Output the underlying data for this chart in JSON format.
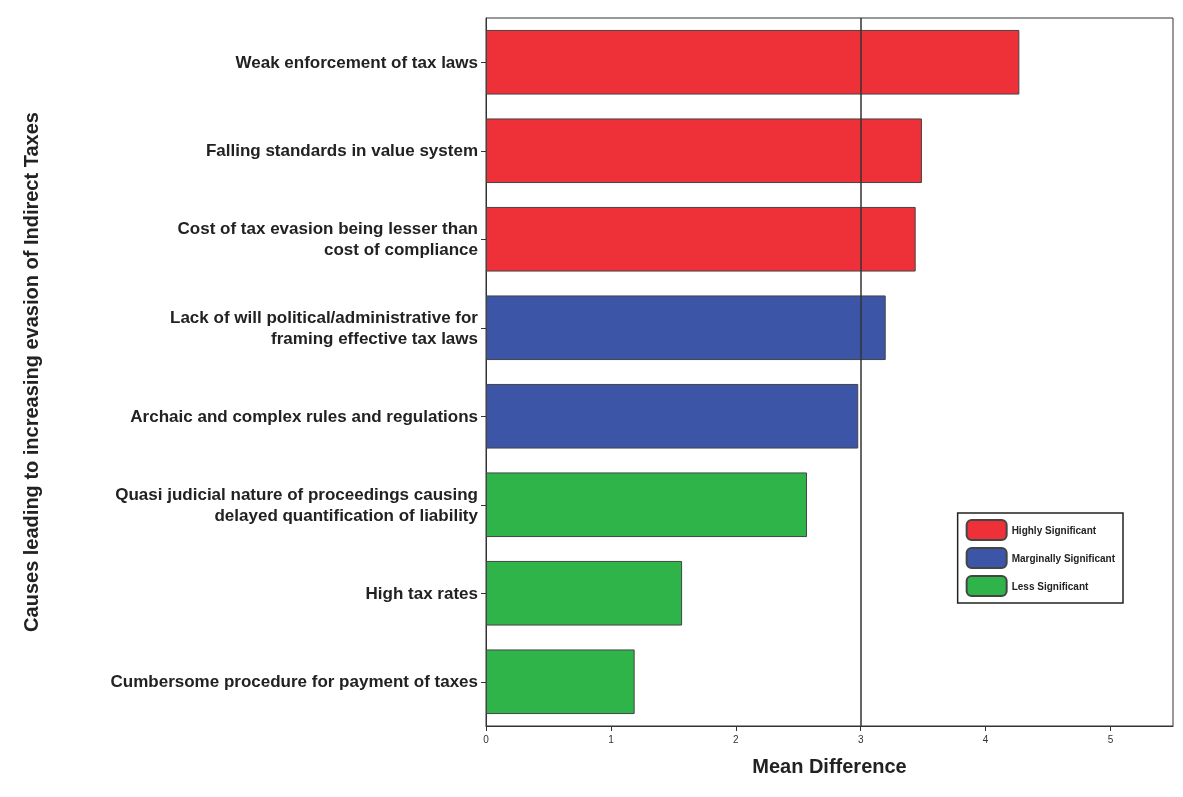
{
  "chart_data": {
    "type": "bar",
    "orientation": "horizontal",
    "xlabel": "Mean Difference",
    "ylabel": "Causes leading to increasing evasion of Indirect Taxes",
    "categories": [
      "Weak enforcement of tax laws",
      "Falling standards in value system",
      "Cost of tax evasion being lesser than\ncost of compliance",
      "Lack of will political/administrative for\nframing effective tax laws",
      "Archaic and complex rules and regulations",
      "Quasi judicial nature of proceedings causing\ndelayed quantification of liability",
      "High tax rates",
      "Cumbersome procedure for payment of taxes"
    ],
    "series": [
      {
        "name": "Highly Significant",
        "color": "#ee3138",
        "values": [
          4.27,
          3.49,
          3.44,
          null,
          null,
          null,
          null,
          null
        ]
      },
      {
        "name": "Marginally Significant",
        "color": "#3c55a6",
        "values": [
          null,
          null,
          null,
          3.2,
          2.98,
          null,
          null,
          null
        ]
      },
      {
        "name": "Less Significant",
        "color": "#2fb44a",
        "values": [
          null,
          null,
          null,
          null,
          null,
          2.57,
          1.57,
          1.19
        ]
      }
    ],
    "xlim": [
      0,
      5.5
    ],
    "xticks": [
      0,
      1,
      2,
      3,
      4,
      5
    ],
    "grid": false,
    "legend": "right",
    "ref_lines": [
      {
        "axis": "x",
        "value": 3,
        "color": "#333333"
      }
    ]
  }
}
